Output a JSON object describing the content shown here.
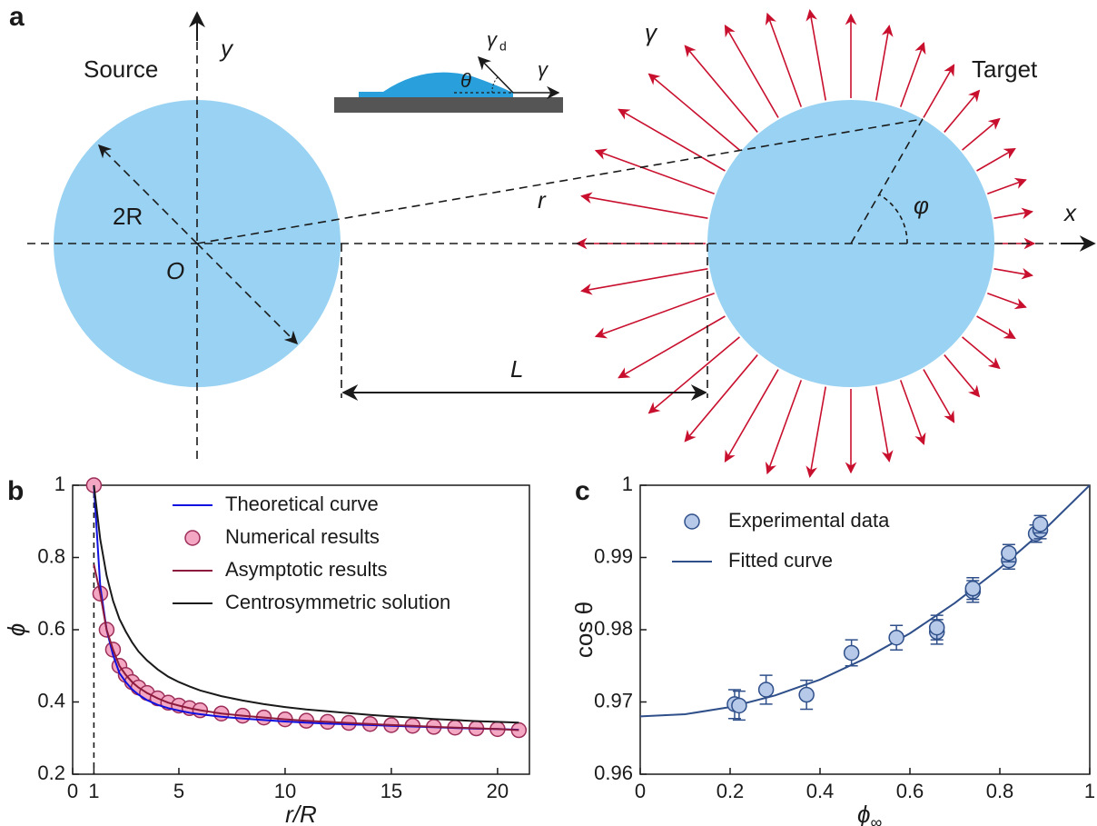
{
  "diagram": {
    "panel": "a",
    "source": "Source",
    "target": "Target",
    "y_axis": "y",
    "x_axis": "x",
    "radius": "2R",
    "origin": "O",
    "distance": "r",
    "gap": "L",
    "angle": "φ",
    "gamma": "γ",
    "inset": {
      "gamma_d": "γ",
      "gamma_d_sub": "d",
      "gamma": "γ",
      "theta": "θ"
    }
  },
  "chart_data": [
    {
      "panel": "b",
      "type": "line",
      "xlabel": "r/R",
      "ylabel": "ϕ",
      "x": [
        1,
        1.3,
        1.6,
        1.9,
        2.2,
        2.5,
        2.8,
        3.1,
        3.5,
        4,
        4.5,
        5,
        5.5,
        6,
        7,
        8,
        9,
        10,
        11,
        12,
        13,
        14,
        15,
        16,
        17,
        18,
        19,
        20,
        21
      ],
      "series": [
        {
          "name": "Theoretical curve",
          "color": "#1010e0",
          "style": "line",
          "values": [
            1,
            0.72,
            0.6,
            0.53,
            0.48,
            0.455,
            0.435,
            0.42,
            0.405,
            0.392,
            0.383,
            0.376,
            0.37,
            0.366,
            0.359,
            0.354,
            0.35,
            0.346,
            0.343,
            0.34,
            0.338,
            0.336,
            0.334,
            0.332,
            0.33,
            0.328,
            0.326,
            0.325,
            0.323
          ]
        },
        {
          "name": "Numerical results",
          "color": "#f3a7c2",
          "edge": "#9c2d58",
          "style": "markers",
          "values": [
            1,
            0.7,
            0.6,
            0.545,
            0.5,
            0.475,
            0.455,
            0.44,
            0.425,
            0.41,
            0.398,
            0.39,
            0.383,
            0.377,
            0.368,
            0.362,
            0.357,
            0.352,
            0.348,
            0.345,
            0.342,
            0.339,
            0.336,
            0.334,
            0.331,
            0.329,
            0.327,
            0.325,
            0.322
          ]
        },
        {
          "name": "Asymptotic results",
          "color": "#8b1a3c",
          "style": "line",
          "values": [
            0.78,
            0.7,
            0.6,
            0.545,
            0.5,
            0.475,
            0.455,
            0.44,
            0.425,
            0.41,
            0.398,
            0.39,
            0.383,
            0.377,
            0.368,
            0.362,
            0.357,
            0.352,
            0.348,
            0.345,
            0.342,
            0.339,
            0.336,
            0.334,
            0.331,
            0.329,
            0.327,
            0.325,
            0.322
          ]
        },
        {
          "name": "Centrosymmetric solution",
          "color": "#1a1a1a",
          "style": "line",
          "values": [
            1,
            0.85,
            0.75,
            0.68,
            0.63,
            0.595,
            0.565,
            0.54,
            0.515,
            0.49,
            0.47,
            0.455,
            0.443,
            0.432,
            0.416,
            0.404,
            0.394,
            0.386,
            0.379,
            0.374,
            0.369,
            0.364,
            0.36,
            0.357,
            0.353,
            0.35,
            0.347,
            0.345,
            0.343
          ]
        }
      ],
      "xlim": [
        0,
        21.5
      ],
      "xticks": [
        0,
        1,
        5,
        10,
        15,
        20
      ],
      "ylim": [
        0.2,
        1
      ],
      "yticks": [
        0.2,
        0.4,
        0.6,
        0.8,
        1
      ],
      "legend": "upper center"
    },
    {
      "panel": "c",
      "type": "scatter",
      "xlabel": "ϕ",
      "xlabel_sub": "∞",
      "ylabel": "cos θ",
      "series": [
        {
          "name": "Experimental data",
          "color": "#b7c9e8",
          "edge": "#2f4f8a",
          "style": "markers",
          "x": [
            0.21,
            0.22,
            0.28,
            0.37,
            0.47,
            0.57,
            0.66,
            0.66,
            0.74,
            0.74,
            0.82,
            0.82,
            0.88,
            0.89,
            0.89
          ],
          "values": [
            0.9697,
            0.9695,
            0.9717,
            0.971,
            0.9768,
            0.9789,
            0.9797,
            0.9803,
            0.9853,
            0.9857,
            0.9896,
            0.9906,
            0.9933,
            0.9938,
            0.9946
          ],
          "errors": [
            0.002,
            0.002,
            0.002,
            0.002,
            0.0018,
            0.0017,
            0.0017,
            0.0017,
            0.0015,
            0.0015,
            0.0012,
            0.0012,
            0.0012,
            0.0012,
            0.0012
          ]
        },
        {
          "name": "Fitted curve",
          "color": "#2f4f8a",
          "style": "line",
          "x": [
            0,
            0.1,
            0.2,
            0.3,
            0.4,
            0.5,
            0.6,
            0.7,
            0.8,
            0.9,
            1
          ],
          "values": [
            0.968,
            0.9683,
            0.9693,
            0.9709,
            0.9731,
            0.976,
            0.9795,
            0.9837,
            0.9885,
            0.9939,
            1
          ]
        }
      ],
      "xlim": [
        0,
        1
      ],
      "xticks": [
        0,
        0.2,
        0.4,
        0.6,
        0.8,
        1
      ],
      "ylim": [
        0.96,
        1
      ],
      "yticks": [
        0.96,
        0.97,
        0.98,
        0.99,
        1
      ],
      "legend": "upper left"
    }
  ]
}
